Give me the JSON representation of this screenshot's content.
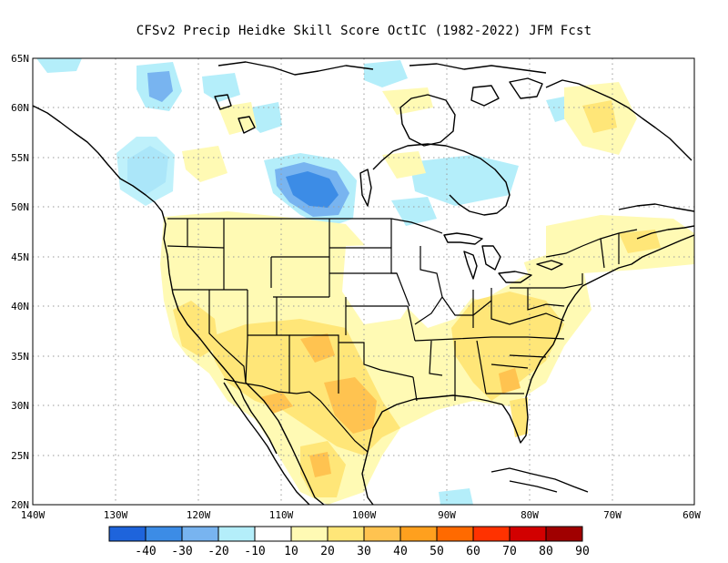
{
  "title": "CFSv2 Precip Heidke Skill Score OctIC (1982-2022) JFM Fcst",
  "map": {
    "lat_labels": [
      "65N",
      "60N",
      "55N",
      "50N",
      "45N",
      "40N",
      "35N",
      "30N",
      "25N",
      "20N"
    ],
    "lon_labels": [
      "140W",
      "130W",
      "120W",
      "110W",
      "100W",
      "90W",
      "80W",
      "70W",
      "60W"
    ],
    "lon_range": [
      -140,
      -60
    ],
    "lat_range": [
      20,
      65
    ]
  },
  "colorbar": {
    "labels": [
      "-40",
      "-30",
      "-20",
      "-10",
      "10",
      "20",
      "30",
      "40",
      "50",
      "60",
      "70",
      "80",
      "90"
    ],
    "colors": [
      "#1e64dc",
      "#3c8ce6",
      "#78b4f0",
      "#b4eefa",
      "#ffffff",
      "#fffab4",
      "#ffe678",
      "#ffc350",
      "#ffa01e",
      "#ff6a00",
      "#ff3200",
      "#d20000",
      "#a00000"
    ]
  },
  "field_colors": {
    "neg_strong": "#3c8ce6",
    "neg_mid": "#78b4f0",
    "neg_weak": "#b4eefa",
    "pos_weak": "#fffab4",
    "pos_mid": "#ffe678",
    "pos_strong": "#ffc350",
    "pos_very": "#ffa01e"
  }
}
